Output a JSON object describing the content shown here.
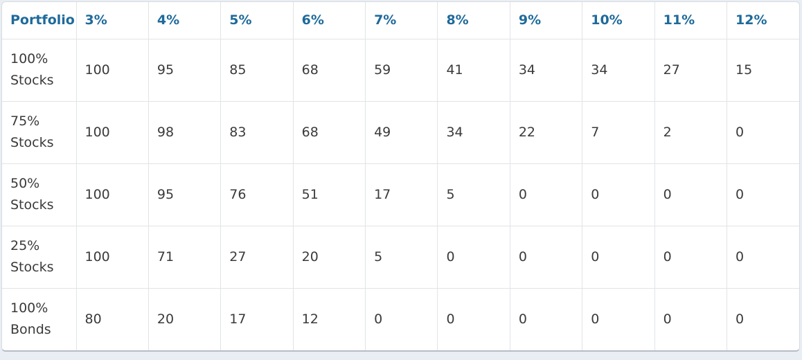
{
  "chart_data": {
    "type": "table",
    "columns": [
      "Portfolio",
      "3%",
      "4%",
      "5%",
      "6%",
      "7%",
      "8%",
      "9%",
      "10%",
      "11%",
      "12%"
    ],
    "rows": [
      {
        "label": "100% Stocks",
        "values": [
          100,
          95,
          85,
          68,
          59,
          41,
          34,
          34,
          27,
          15
        ]
      },
      {
        "label": "75% Stocks",
        "values": [
          100,
          98,
          83,
          68,
          49,
          34,
          22,
          7,
          2,
          0
        ]
      },
      {
        "label": "50% Stocks",
        "values": [
          100,
          95,
          76,
          51,
          17,
          5,
          0,
          0,
          0,
          0
        ]
      },
      {
        "label": "25% Stocks",
        "values": [
          100,
          71,
          27,
          20,
          5,
          0,
          0,
          0,
          0,
          0
        ]
      },
      {
        "label": "100% Bonds",
        "values": [
          80,
          20,
          17,
          12,
          0,
          0,
          0,
          0,
          0,
          0
        ]
      }
    ]
  },
  "colors": {
    "header_text": "#1e6a9b",
    "body_text": "#3a3a3a",
    "cell_border": "#e2e3e5",
    "card_border": "#d8dbdf",
    "page_background": "#e9eef4",
    "card_background": "#ffffff"
  }
}
